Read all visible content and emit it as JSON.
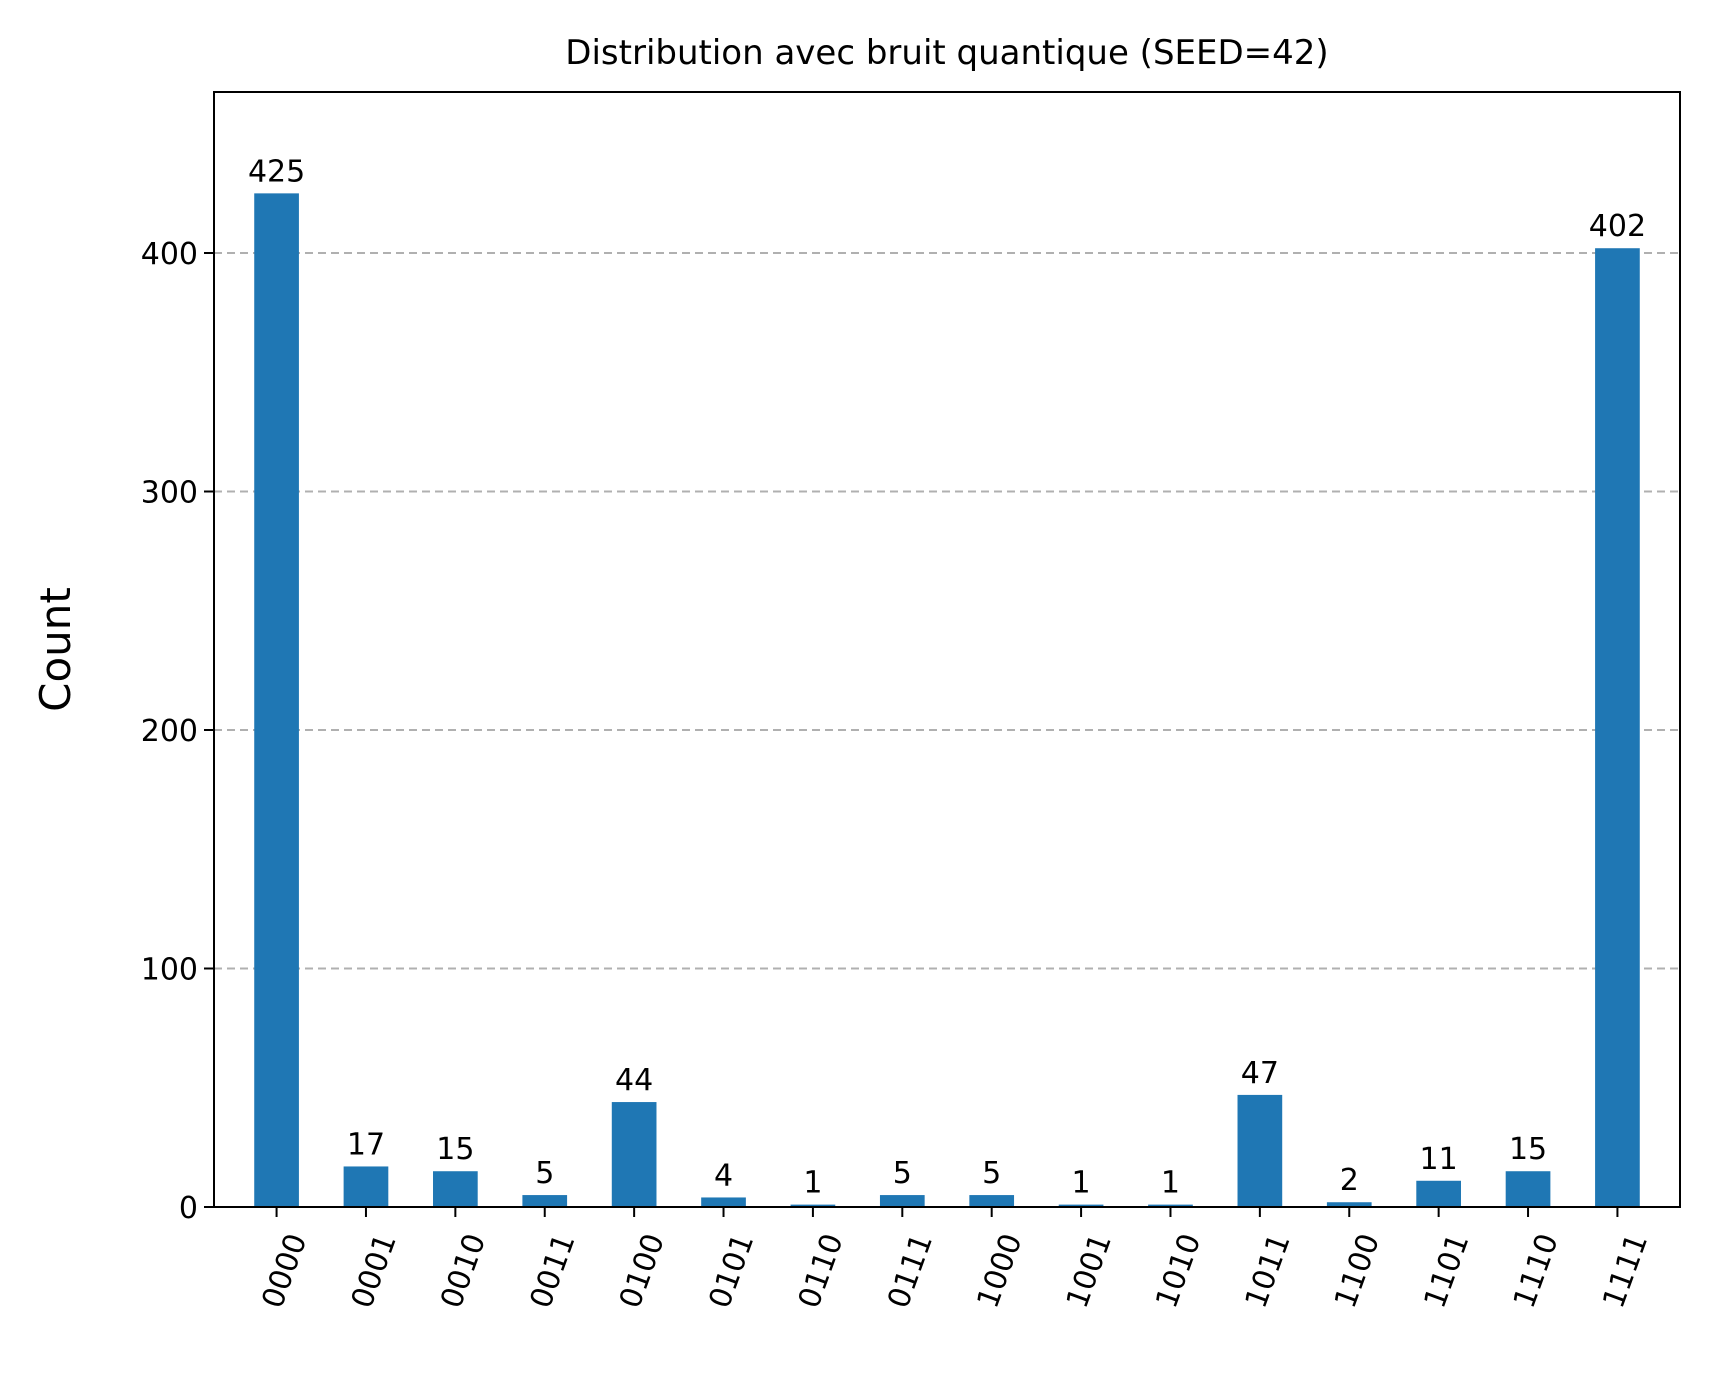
{
  "chart_data": {
    "type": "bar",
    "title": "Distribution avec bruit quantique (SEED=42)",
    "xlabel": "",
    "ylabel": "Count",
    "categories": [
      "0000",
      "0001",
      "0010",
      "0011",
      "0100",
      "0101",
      "0110",
      "0111",
      "1000",
      "1001",
      "1010",
      "1011",
      "1100",
      "1101",
      "1110",
      "1111"
    ],
    "values": [
      425,
      17,
      15,
      5,
      44,
      4,
      1,
      5,
      5,
      1,
      1,
      47,
      2,
      11,
      15,
      402
    ],
    "ylim": [
      0,
      467.5
    ],
    "yticks": [
      0,
      100,
      200,
      300,
      400
    ],
    "grid": "y-dashed",
    "bar_color": "#1f77b4",
    "grid_color": "#b0b0b0"
  }
}
